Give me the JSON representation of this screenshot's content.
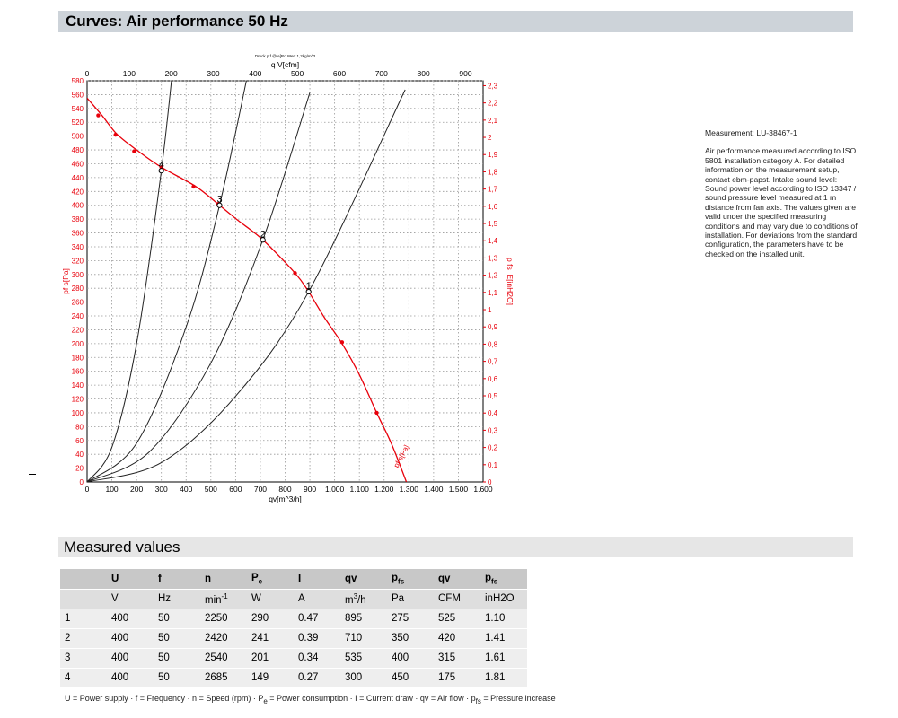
{
  "header": {
    "title": "Curves: Air performance 50 Hz"
  },
  "measured": {
    "title": "Measured values",
    "head1": [
      "",
      "U",
      "f",
      "n",
      "P",
      "I",
      "qv",
      "p",
      "qv",
      "p"
    ],
    "head1_sub": [
      "",
      "",
      "",
      "",
      "e",
      "",
      "",
      "fs",
      "",
      "fs"
    ],
    "units": [
      "",
      "V",
      "Hz",
      "min",
      "W",
      "A",
      "m",
      "Pa",
      "CFM",
      "inH2O"
    ],
    "units_sup": [
      "",
      "",
      "",
      "-1",
      "",
      "",
      "3",
      "",
      "",
      ""
    ],
    "units_tail": [
      "",
      "",
      "",
      "",
      "",
      "",
      "/h",
      "",
      "",
      ""
    ],
    "rows": [
      [
        "1",
        "400",
        "50",
        "2250",
        "290",
        "0.47",
        "895",
        "275",
        "525",
        "1.10"
      ],
      [
        "2",
        "400",
        "50",
        "2420",
        "241",
        "0.39",
        "710",
        "350",
        "420",
        "1.41"
      ],
      [
        "3",
        "400",
        "50",
        "2540",
        "201",
        "0.34",
        "535",
        "400",
        "315",
        "1.61"
      ],
      [
        "4",
        "400",
        "50",
        "2685",
        "149",
        "0.27",
        "300",
        "450",
        "175",
        "1.81"
      ]
    ],
    "legend": "U = Power supply · f = Frequency · n = Speed (rpm) · Pe = Power consumption · I = Current draw · qv = Air flow · pfs = Pressure increase"
  },
  "note": {
    "id": "Measurement: LU-38467-1",
    "text": "Air performance measured according to ISO 5801 installation category A. For detailed information on the measurement setup, contact ebm-papst. Intake sound level: Sound power level according to ISO 13347 / sound pressure level measured at 1 m distance from fan axis. The values given are valid under the specified measuring conditions and may vary due to conditions of installation. For deviations from the standard configuration, the parameters have to be checked on the installed unit."
  },
  "chart_data": {
    "type": "line",
    "top_caption": "Druck p f @%[Ro Wert 1,2kg/m^3",
    "xlabel": "qv[m^3/h]",
    "xlabel_top": "q V[cfm]",
    "ylabel_left": "pf s[Pa]",
    "ylabel_right": "p fs_E[inH2O]",
    "xlim": [
      0,
      1600
    ],
    "ylim": [
      0,
      580
    ],
    "x_ticks": [
      "0",
      "100",
      "200",
      "300",
      "400",
      "500",
      "600",
      "700",
      "800",
      "900",
      "1.000",
      "1.100",
      "1.200",
      "1.300",
      "1.400",
      "1.500",
      "1.600"
    ],
    "x_top_lim": [
      0,
      941.7
    ],
    "x_top_ticks": [
      "0",
      "100",
      "200",
      "300",
      "400",
      "500",
      "600",
      "700",
      "800",
      "900"
    ],
    "y_ticks": [
      "0",
      "20",
      "40",
      "60",
      "80",
      "100",
      "120",
      "140",
      "160",
      "180",
      "200",
      "220",
      "240",
      "260",
      "280",
      "300",
      "320",
      "340",
      "360",
      "380",
      "400",
      "420",
      "440",
      "460",
      "480",
      "500",
      "520",
      "540",
      "560",
      "580"
    ],
    "y_right_lim": [
      0,
      2.3284
    ],
    "y_right_ticks": [
      "0",
      "0,1",
      "0,2",
      "0,3",
      "0,4",
      "0,5",
      "0,6",
      "0,7",
      "0,8",
      "0,9",
      "1",
      "1,1",
      "1,2",
      "1,3",
      "1,4",
      "1,5",
      "1,6",
      "1,7",
      "1,8",
      "1,9",
      "2",
      "2,1",
      "2,2",
      "2,3"
    ],
    "grid": true,
    "curve_label": "pf s[Pa]",
    "fan_curve": {
      "x": [
        0,
        60,
        120,
        200,
        300,
        440,
        535,
        610,
        710,
        840,
        895,
        960,
        1030,
        1100,
        1170,
        1230,
        1290
      ],
      "y": [
        555,
        530,
        503,
        480,
        455,
        427,
        400,
        378,
        350,
        302,
        275,
        237,
        200,
        155,
        100,
        55,
        0
      ],
      "markers_x": [
        45,
        115,
        190,
        300,
        430,
        530,
        710,
        840,
        895,
        1030,
        1170
      ],
      "markers_y": [
        530,
        502,
        478,
        455,
        427,
        402,
        350,
        302,
        275,
        202,
        100
      ]
    },
    "system_curves": [
      {
        "label": "1",
        "x": [
          0,
          300,
          600,
          895,
          1285
        ],
        "y": [
          0,
          28,
          124,
          275,
          567
        ]
      },
      {
        "label": "2",
        "x": [
          0,
          250,
          500,
          710,
          900
        ],
        "y": [
          0,
          43,
          172,
          350,
          563
        ]
      },
      {
        "label": "3",
        "x": [
          0,
          200,
          400,
          535,
          658
        ],
        "y": [
          0,
          56,
          224,
          400,
          605
        ]
      },
      {
        "label": "4",
        "x": [
          0,
          100,
          200,
          300,
          355
        ],
        "y": [
          0,
          50,
          200,
          450,
          630
        ]
      }
    ],
    "op_points": [
      {
        "label": "1",
        "x": 895,
        "y": 275
      },
      {
        "label": "2",
        "x": 710,
        "y": 350
      },
      {
        "label": "3",
        "x": 535,
        "y": 400
      },
      {
        "label": "4",
        "x": 300,
        "y": 450
      }
    ],
    "colors": {
      "fan": "#e8000b",
      "system": "#222222",
      "left_axis": "#e8000b",
      "right_axis": "#e8000b",
      "grid": "#999999"
    }
  }
}
